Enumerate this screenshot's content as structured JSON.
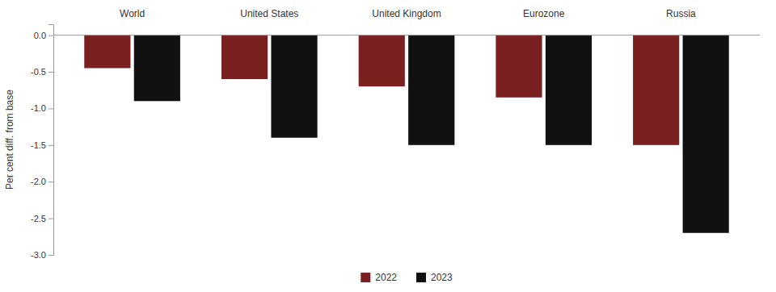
{
  "chart_data": {
    "type": "bar",
    "categories": [
      "World",
      "United States",
      "United Kingdom",
      "Eurozone",
      "Russia"
    ],
    "series": [
      {
        "name": "2022",
        "color": "#7B2020",
        "values": [
          -0.45,
          -0.6,
          -0.7,
          -0.85,
          -1.5
        ]
      },
      {
        "name": "2023",
        "color": "#111111",
        "values": [
          -0.9,
          -1.4,
          -1.5,
          -1.5,
          -2.7
        ]
      }
    ],
    "ylabel": "Per cent diff. from base",
    "ylim": [
      -3.0,
      0.15
    ],
    "yticks": [
      {
        "value": 0.0,
        "label": "0.0"
      },
      -0.5,
      {
        "value": -1.0,
        "label": "-1.0"
      },
      -1.5,
      {
        "value": -2.0,
        "label": "-2.0"
      },
      -2.5,
      {
        "value": -3.0,
        "label": "-3.0"
      }
    ],
    "legend": "bottom"
  }
}
